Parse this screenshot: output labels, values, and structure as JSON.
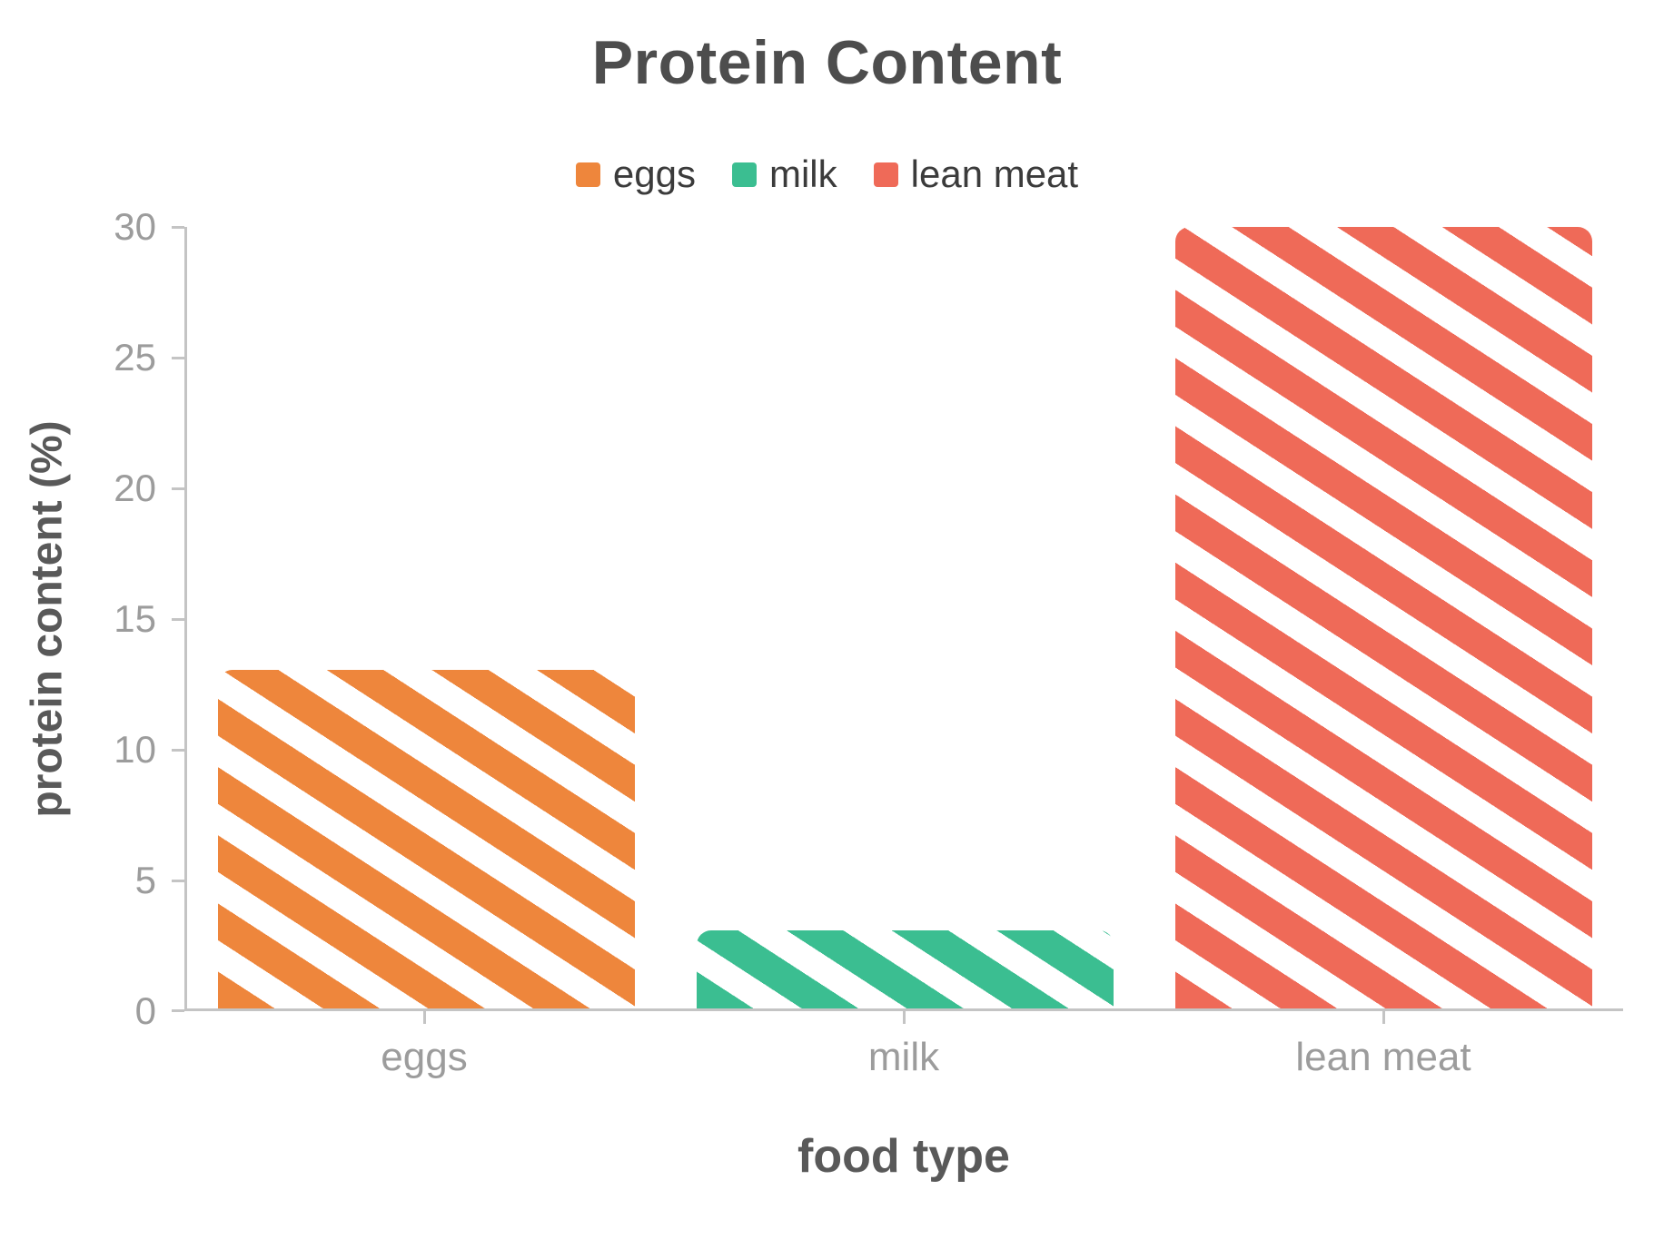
{
  "chart_data": {
    "type": "bar",
    "title": "Protein Content",
    "xlabel": "food type",
    "ylabel": "protein content (%)",
    "categories": [
      "eggs",
      "milk",
      "lean meat"
    ],
    "values": [
      13,
      3,
      30
    ],
    "series_colors": [
      "#ee863c",
      "#3bbe91",
      "#ef6a58"
    ],
    "legend": [
      {
        "label": "eggs",
        "color": "#ee863c"
      },
      {
        "label": "milk",
        "color": "#3bbe91"
      },
      {
        "label": "lean meat",
        "color": "#ef6a58"
      }
    ],
    "legend_position": "top",
    "ylim": [
      0,
      30
    ],
    "ytick_step": 5,
    "yticks": [
      "0",
      "5",
      "10",
      "15",
      "20",
      "25",
      "30"
    ],
    "grid": false,
    "bar_pattern": "diagonal-stripes",
    "axis_color": "#c4c4c4",
    "tick_label_color": "#9c9c9c",
    "title_color": "#4d4d4d"
  }
}
